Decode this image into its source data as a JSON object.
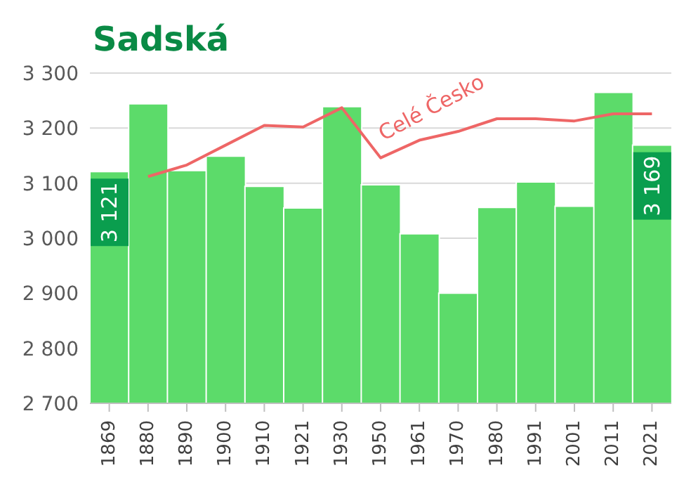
{
  "chart_data": {
    "type": "bar",
    "title": "Sadská",
    "categories": [
      "1869",
      "1880",
      "1890",
      "1900",
      "1910",
      "1921",
      "1930",
      "1950",
      "1961",
      "1970",
      "1980",
      "1991",
      "2001",
      "2011",
      "2021"
    ],
    "series": [
      {
        "color": "#5cdb6a",
        "values": [
          3121,
          3244,
          3123,
          3149,
          3094,
          3055,
          3239,
          3097,
          3008,
          2900,
          3056,
          3102,
          3058,
          3265,
          3169
        ],
        "value_labels": [
          "3 121",
          null,
          null,
          null,
          null,
          null,
          null,
          null,
          null,
          null,
          null,
          null,
          null,
          null,
          "3 169"
        ]
      },
      {
        "type": "line",
        "name": "Celé Česko",
        "color": "#ee6666",
        "values": [
          null,
          3112,
          3133,
          3169,
          3205,
          3202,
          3237,
          3146,
          3178,
          3194,
          3217,
          3217,
          3213,
          3226,
          3226
        ]
      }
    ],
    "ylim": [
      2700,
      3300
    ],
    "yticks": [
      {
        "value": 2700,
        "label": "2 700"
      },
      {
        "value": 2800,
        "label": "2 800"
      },
      {
        "value": 2900,
        "label": "2 900"
      },
      {
        "value": 3000,
        "label": "3 000"
      },
      {
        "value": 3100,
        "label": "3 100"
      },
      {
        "value": 3200,
        "label": "3 200"
      },
      {
        "value": 3300,
        "label": "3 300"
      }
    ],
    "grid": "y"
  }
}
